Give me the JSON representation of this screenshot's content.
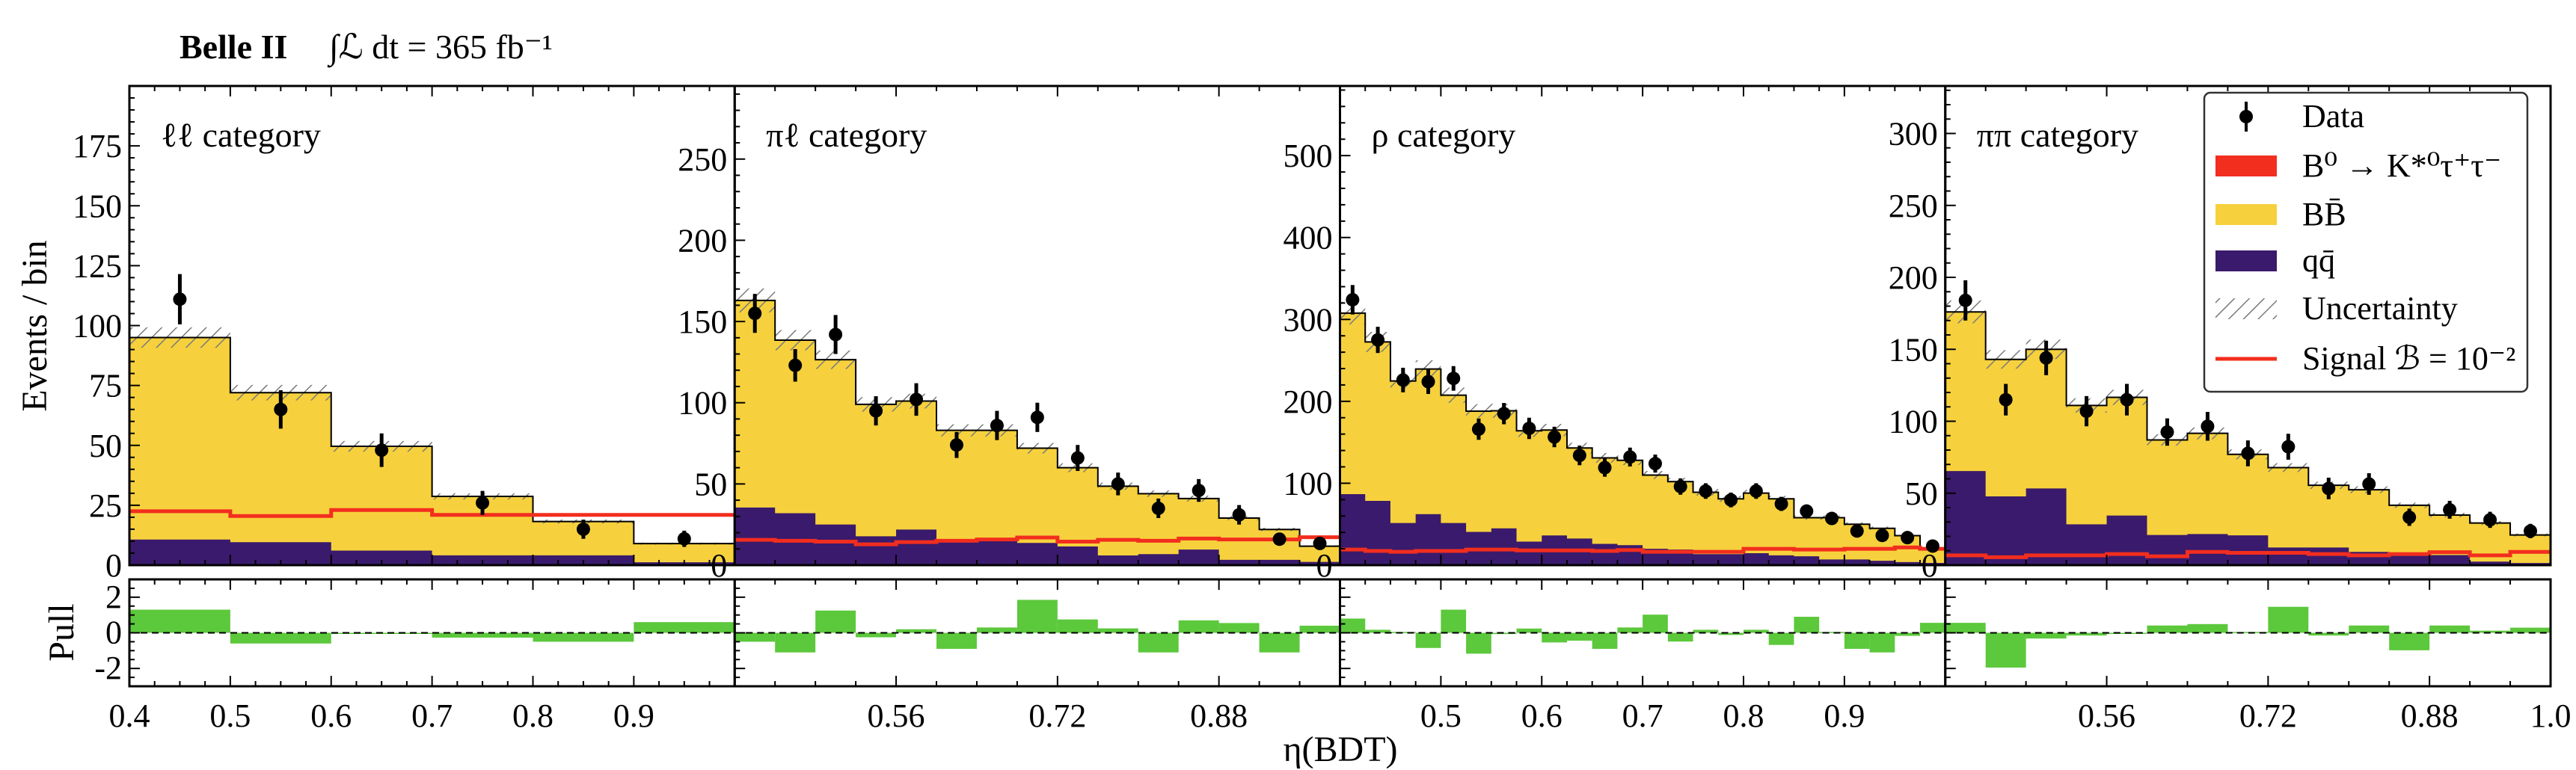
{
  "header": {
    "experiment": "Belle II",
    "luminosity": "∫ℒ dt = 365 fb⁻¹"
  },
  "axes": {
    "ylabel": "Events / bin",
    "pull_label": "Pull",
    "xlabel": "η(BDT)",
    "pull_ylim": [
      -3,
      3
    ],
    "pull_yticks": [
      -2,
      0,
      2
    ]
  },
  "legend": {
    "placement": "top-right",
    "entries": [
      {
        "label": "Data",
        "style": "marker"
      },
      {
        "label": "B⁰ → K*⁰τ⁺τ⁻",
        "style": "fill",
        "color": "#F22E1E"
      },
      {
        "label": "BB̄",
        "style": "fill",
        "color": "#F6D13D"
      },
      {
        "label": "qq̄",
        "style": "fill",
        "color": "#3A1A6C"
      },
      {
        "label": "Uncertainty",
        "style": "hatch"
      },
      {
        "label": "Signal ℬ = 10⁻²",
        "style": "line",
        "color": "#F22E1E"
      }
    ]
  },
  "colors": {
    "bbbar": "#F6D13D",
    "qqbar": "#3A1A6C",
    "signal": "#F22E1E",
    "pull": "#5CC83C",
    "hatch": "#7a7a7a"
  },
  "chart_data": {
    "type": "bar",
    "grid": false,
    "panels": [
      {
        "category": "ℓℓ category",
        "xlim": [
          0.4,
          1.0
        ],
        "bin_width": 0.1,
        "xticks": [
          "0.4",
          "0.5",
          "0.6",
          "0.7",
          "0.8",
          "0.9"
        ],
        "xtick_values": [
          0.4,
          0.5,
          0.6,
          0.7,
          0.8,
          0.9
        ],
        "ylim": [
          0,
          200
        ],
        "yticks": [
          0,
          25,
          50,
          75,
          100,
          125,
          150,
          175
        ],
        "stack_total": [
          95,
          72,
          49.6,
          28.7,
          18.2,
          9
        ],
        "qqbar": [
          10.7,
          9.6,
          6.1,
          4.1,
          4.1,
          1.2
        ],
        "signal_B_1e-2": [
          22.5,
          20.5,
          23,
          21,
          21,
          21
        ],
        "data": [
          111,
          65,
          48,
          26,
          15,
          11
        ],
        "data_err": [
          10.5,
          8,
          7,
          5,
          4,
          3.4
        ],
        "pull": [
          1.3,
          -0.6,
          -0.05,
          -0.27,
          -0.5,
          0.6
        ]
      },
      {
        "category": "πℓ category",
        "xlim": [
          0.4,
          1.0
        ],
        "bin_width": 0.04,
        "xticks": [
          "0.56",
          "0.72",
          "0.88"
        ],
        "xtick_values": [
          0.56,
          0.72,
          0.88
        ],
        "ylim": [
          0,
          295
        ],
        "yticks": [
          0,
          50,
          100,
          150,
          200,
          250
        ],
        "stack_total": [
          163,
          138.5,
          126.5,
          99,
          101,
          83,
          83,
          72,
          60,
          48.6,
          44,
          41,
          29,
          22,
          11.7
        ],
        "qqbar": [
          35.5,
          32,
          25,
          17.8,
          21.9,
          15,
          16.4,
          13.7,
          11.5,
          6,
          6.8,
          9.6,
          3.3,
          3.3,
          2
        ],
        "signal_B_1e-2": [
          15.6,
          15,
          14.5,
          12.8,
          14.2,
          15,
          15.8,
          17,
          14.5,
          15.6,
          15,
          16.4,
          15.8,
          15.8,
          17.2
        ],
        "data": [
          155,
          123,
          142,
          95,
          102,
          74,
          86,
          91,
          66,
          50,
          35,
          46,
          31,
          16,
          13.4
        ],
        "data_err": [
          12,
          10,
          12,
          9,
          10,
          8,
          9,
          9,
          8,
          7,
          6,
          7,
          6,
          4,
          4
        ],
        "pull": [
          -0.5,
          -1.1,
          1.25,
          -0.25,
          0.2,
          -0.9,
          0.3,
          1.85,
          0.75,
          0.25,
          -1.1,
          0.7,
          0.55,
          -1.1,
          0.4
        ]
      },
      {
        "category": "ρ category",
        "xlim": [
          0.4,
          1.0
        ],
        "bin_width": 0.025,
        "xticks": [
          "0.5",
          "0.6",
          "0.7",
          "0.8",
          "0.9"
        ],
        "xtick_values": [
          0.5,
          0.6,
          0.7,
          0.8,
          0.9
        ],
        "ylim": [
          0,
          585
        ],
        "yticks": [
          0,
          100,
          200,
          300,
          400,
          500
        ],
        "stack_total": [
          307.7,
          272.5,
          224.8,
          239.4,
          207.5,
          188,
          188.5,
          164,
          165,
          143,
          131,
          128,
          110,
          102,
          89,
          81,
          88,
          81,
          58,
          58,
          50,
          45,
          36,
          20
        ],
        "qqbar": [
          86.7,
          78.5,
          51.5,
          62.3,
          51.5,
          40.6,
          45,
          28.7,
          36.3,
          32.5,
          26,
          24.4,
          20,
          19,
          13.5,
          13.5,
          14.6,
          12,
          10.8,
          7,
          7,
          5.4,
          3.8,
          2.7
        ],
        "signal_B_1e-2": [
          19,
          17.3,
          16.3,
          17.3,
          17.3,
          19,
          19,
          18,
          18,
          18,
          17.3,
          18.5,
          16.3,
          16.3,
          16.3,
          16.3,
          20,
          20,
          19,
          19,
          20,
          20,
          21.7,
          20
        ],
        "data": [
          324,
          275,
          226,
          224,
          228,
          166,
          185,
          167,
          156.5,
          134,
          119,
          132,
          124,
          96,
          90.5,
          79.6,
          90.5,
          74.8,
          66,
          57,
          41.7,
          36.3,
          33.6,
          23.3
        ],
        "data_err": [
          18,
          16,
          15,
          15,
          15,
          13,
          13,
          13,
          12.5,
          12,
          11,
          11.5,
          11,
          10,
          9.5,
          9,
          9.5,
          8.6,
          8,
          7.5,
          6.5,
          6,
          5.8,
          4.8
        ],
        "pull": [
          0.8,
          0.17,
          0.05,
          -0.85,
          1.3,
          -1.17,
          -0.07,
          0.24,
          -0.54,
          -0.44,
          -0.9,
          0.3,
          1.02,
          -0.49,
          0.17,
          -0.12,
          0.17,
          -0.68,
          0.9,
          0.05,
          -0.9,
          -1.1,
          -0.17,
          0.56
        ]
      },
      {
        "category": "ππ category",
        "xlim": [
          0.4,
          1.0
        ],
        "bin_width": 0.04,
        "xticks": [
          "0.56",
          "0.72",
          "0.88",
          "1.0"
        ],
        "xtick_values": [
          0.56,
          0.72,
          0.88,
          1.0
        ],
        "ylim": [
          0,
          333
        ],
        "yticks": [
          0,
          50,
          100,
          150,
          200,
          250,
          300
        ],
        "stack_total": [
          176,
          143,
          150,
          111,
          116.6,
          87,
          91.6,
          77,
          67.8,
          55.5,
          52.4,
          41.6,
          34.8,
          29.3,
          21
        ],
        "qqbar": [
          65.4,
          47.8,
          53.3,
          28.4,
          34.5,
          21,
          21.6,
          20.7,
          12.3,
          12.3,
          9.2,
          8.3,
          7,
          2.5,
          1.5
        ],
        "signal_B_1e-2": [
          6.8,
          5.5,
          6.8,
          6.8,
          7.7,
          6.2,
          9.2,
          8.6,
          8.6,
          7.7,
          6.8,
          7.7,
          9,
          6.8,
          9.2
        ],
        "data": [
          184,
          115,
          144,
          107,
          115,
          92.5,
          96.5,
          77.7,
          82.3,
          53.3,
          56.4,
          33.3,
          38.5,
          31.5,
          23.7
        ],
        "data_err": [
          14,
          11,
          12,
          10.5,
          11,
          9.5,
          10,
          9,
          9,
          7.5,
          7.5,
          6,
          6.2,
          5.6,
          5
        ],
        "pull": [
          0.56,
          -1.95,
          -0.32,
          -0.15,
          -0.05,
          0.41,
          0.49,
          0.05,
          1.46,
          -0.15,
          0.41,
          -0.98,
          0.41,
          0.12,
          0.29
        ]
      }
    ]
  }
}
